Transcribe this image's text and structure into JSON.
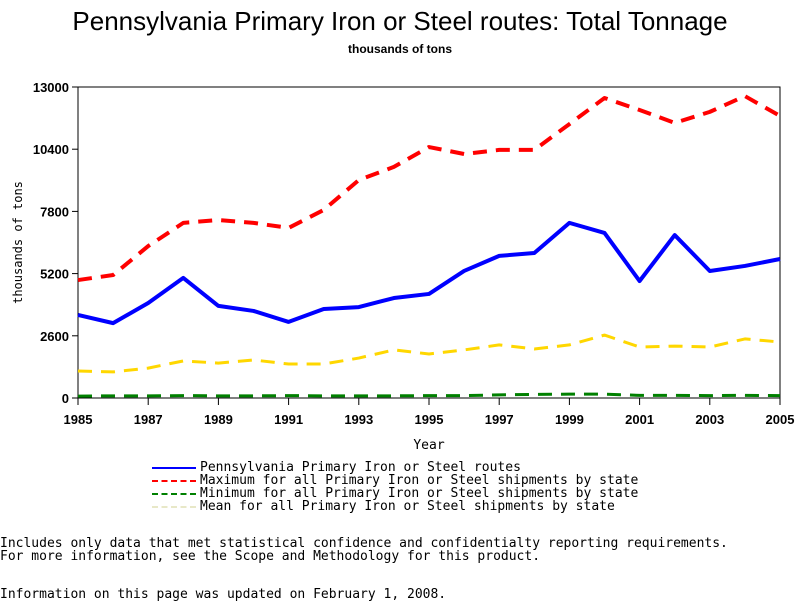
{
  "chart_data": {
    "type": "line",
    "title": "Pennsylvania Primary Iron or Steel routes: Total Tonnage",
    "subtitle": "thousands of tons",
    "xlabel": "Year",
    "ylabel": "thousands of tons",
    "ylim": [
      0,
      13000
    ],
    "xlim": [
      1985,
      2005
    ],
    "yticks": [
      0,
      2600,
      5200,
      7800,
      10400,
      13000
    ],
    "xticks": [
      1985,
      1987,
      1989,
      1991,
      1993,
      1995,
      1997,
      1999,
      2001,
      2003,
      2005
    ],
    "x": [
      1985,
      1986,
      1987,
      1988,
      1989,
      1990,
      1991,
      1992,
      1993,
      1994,
      1995,
      1996,
      1997,
      1998,
      1999,
      2000,
      2001,
      2002,
      2003,
      2004,
      2005
    ],
    "series": [
      {
        "name": "Pennsylvania Primary Iron or Steel routes",
        "color": "#0000ff",
        "dash": "solid",
        "values": [
          3470,
          3130,
          3970,
          5020,
          3850,
          3640,
          3180,
          3720,
          3800,
          4180,
          4350,
          5310,
          5940,
          6060,
          7320,
          6900,
          4890,
          6810,
          5310,
          5520,
          5810
        ]
      },
      {
        "name": "Maximum for all Primary Iron or Steel shipments by state",
        "color": "#ff0000",
        "dash": "dashed",
        "values": [
          4930,
          5140,
          6350,
          7320,
          7440,
          7320,
          7110,
          7860,
          9110,
          9660,
          10490,
          10200,
          10370,
          10370,
          11450,
          12540,
          12040,
          11500,
          11960,
          12620,
          11790
        ]
      },
      {
        "name": "Minimum for all Primary Iron or Steel shipments by state",
        "color": "#008000",
        "dash": "dashed",
        "values": [
          80,
          90,
          90,
          100,
          90,
          90,
          100,
          90,
          90,
          90,
          100,
          100,
          130,
          150,
          160,
          160,
          110,
          110,
          100,
          110,
          100
        ]
      },
      {
        "name": "Mean for all Primary Iron or Steel shipments by state",
        "color": "#ffd700",
        "dash": "dashed",
        "values": [
          1130,
          1090,
          1250,
          1550,
          1460,
          1590,
          1420,
          1420,
          1670,
          2010,
          1840,
          2010,
          2220,
          2050,
          2220,
          2630,
          2130,
          2170,
          2130,
          2470,
          2340
        ]
      }
    ],
    "legend": "bottom"
  },
  "notes": {
    "line1": "Includes only data that met statistical confidence and confidentialty reporting requirements.",
    "line2": "For more information, see the Scope and Methodology for this product.",
    "updated": "Information on this page was updated on February 1, 2008."
  }
}
